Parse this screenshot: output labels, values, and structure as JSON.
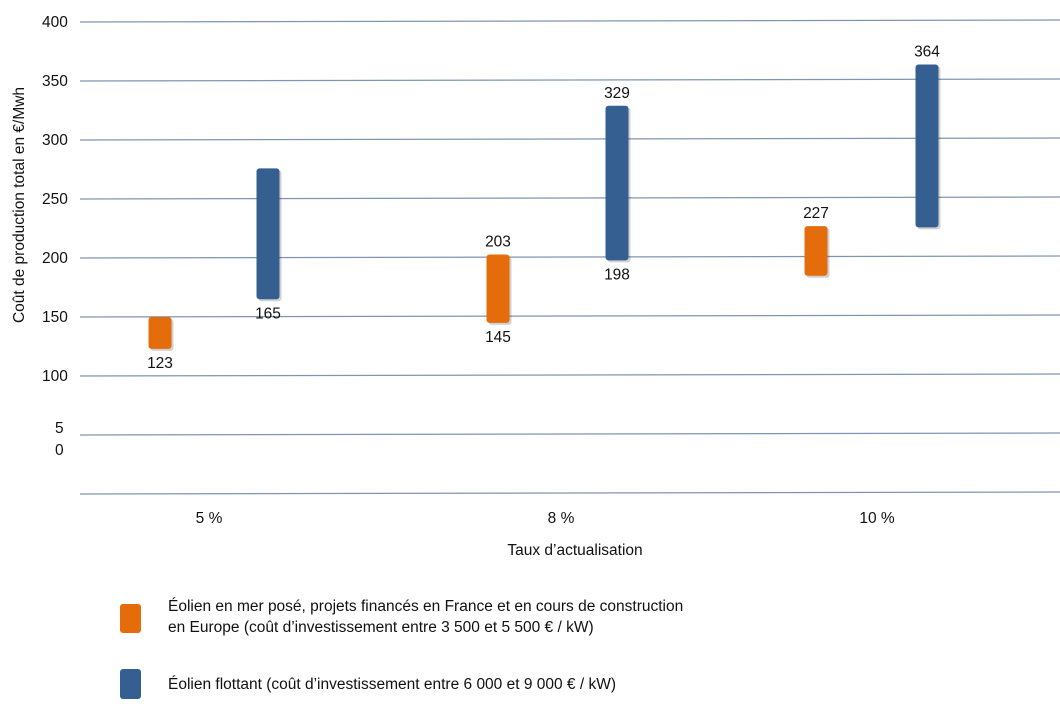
{
  "chart_data": {
    "type": "floating-bar",
    "ylabel": "Coût de production total en €/Mwh",
    "xlabel": "Taux d’actualisation",
    "categories": [
      "5 %",
      "8 %",
      "10 %"
    ],
    "y_ticks": [
      "400",
      "350",
      "300",
      "250",
      "200",
      "150",
      "100",
      "5\n0"
    ],
    "ylim": [
      0,
      400
    ],
    "grid": true,
    "series": [
      {
        "name": "Éolien en mer posé, projets financés en France et en cours de construction en Europe (coût d’investissement entre 3 500 et 5 500 € / kW)",
        "color": "#E46C0A",
        "low": [
          123,
          145,
          185
        ],
        "high": [
          150,
          203,
          227
        ],
        "labels": [
          {
            "low": "123",
            "high": ""
          },
          {
            "low": "145",
            "high": "203"
          },
          {
            "low": "",
            "high": "227"
          }
        ]
      },
      {
        "name": "Éolien flottant (coût d’investissement entre 6 000 et 9 000 € / kW)",
        "color": "#365F91",
        "low": [
          165,
          198,
          226
        ],
        "high": [
          276,
          329,
          364
        ],
        "labels": [
          {
            "low": "165",
            "high": ""
          },
          {
            "low": "198",
            "high": "329"
          },
          {
            "low": "",
            "high": "364"
          }
        ]
      }
    ]
  },
  "legend": {
    "items": [
      {
        "line1": "Éolien en mer posé, projets financés en France et en cours de construction",
        "line2": "en Europe (coût d’investissement entre 3 500 et 5 500 € / kW)",
        "color": "#E46C0A"
      },
      {
        "line1": "Éolien flottant (coût d’investissement entre 6 000 et 9 000 € / kW)",
        "line2": "",
        "color": "#365F91"
      }
    ]
  }
}
